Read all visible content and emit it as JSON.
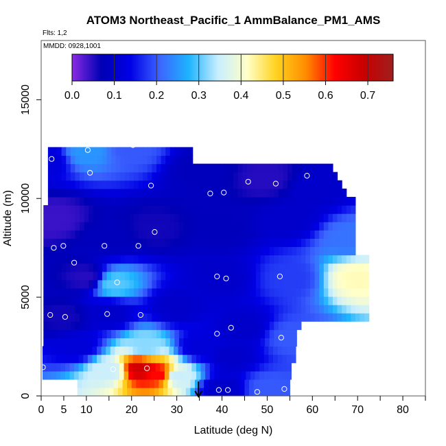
{
  "chart_data": {
    "type": "heatmap",
    "title": "ATOM3 Northeast_Pacific_1 AmmBalance_PM1_AMS",
    "subtitle_flights": "Flts: 1,2",
    "subtitle_dates": "MMDD: 0928,1001",
    "xlabel": "Latitude (deg N)",
    "ylabel": "Altitude (m)",
    "xlim": [
      0,
      85
    ],
    "ylim": [
      0,
      18000
    ],
    "x_ticks": [
      0,
      5,
      10,
      20,
      30,
      40,
      50,
      60,
      70,
      80
    ],
    "x_tick_labels": [
      "0",
      "5",
      "10",
      "20",
      "30",
      "40",
      "50",
      "60",
      "70",
      "80"
    ],
    "y_ticks": [
      0,
      5000,
      10000,
      15000
    ],
    "y_tick_labels": [
      "0",
      "5000",
      "10000",
      "15000"
    ],
    "colorbar": {
      "min": 0.0,
      "max": 0.76,
      "ticks": [
        0.0,
        0.1,
        0.2,
        0.3,
        0.4,
        0.5,
        0.6,
        0.7
      ],
      "tick_labels": [
        "0.0",
        "0.1",
        "0.2",
        "0.3",
        "0.4",
        "0.5",
        "0.6",
        "0.7"
      ],
      "colors": [
        "#8a2be2",
        "#0000b4",
        "#0000e6",
        "#3c64ff",
        "#1eb4ff",
        "#c8eeff",
        "#ffffc8",
        "#ffd21e",
        "#ff8c00",
        "#ff0000",
        "#c80000",
        "#a01e1e"
      ]
    },
    "latitude_range": [
      0.5,
      72
    ],
    "altitude_range": [
      0,
      12600
    ],
    "field_samples": [
      {
        "lat": 1,
        "alt": 12000,
        "value": 0.12
      },
      {
        "lat": 10,
        "alt": 12400,
        "value": 0.25
      },
      {
        "lat": 20,
        "alt": 12500,
        "value": 0.2
      },
      {
        "lat": 35,
        "alt": 11500,
        "value": 0.08
      },
      {
        "lat": 50,
        "alt": 11000,
        "value": 0.05
      },
      {
        "lat": 60,
        "alt": 10500,
        "value": 0.1
      },
      {
        "lat": 3,
        "alt": 9000,
        "value": 0.04
      },
      {
        "lat": 15,
        "alt": 8000,
        "value": 0.08
      },
      {
        "lat": 25,
        "alt": 8500,
        "value": 0.06
      },
      {
        "lat": 40,
        "alt": 8500,
        "value": 0.08
      },
      {
        "lat": 55,
        "alt": 9000,
        "value": 0.1
      },
      {
        "lat": 68,
        "alt": 8000,
        "value": 0.22
      },
      {
        "lat": 10,
        "alt": 6000,
        "value": 0.05
      },
      {
        "lat": 16,
        "alt": 5700,
        "value": 0.3
      },
      {
        "lat": 40,
        "alt": 6000,
        "value": 0.1
      },
      {
        "lat": 55,
        "alt": 6000,
        "value": 0.18
      },
      {
        "lat": 70,
        "alt": 6000,
        "value": 0.42
      },
      {
        "lat": 5,
        "alt": 4000,
        "value": 0.06
      },
      {
        "lat": 15,
        "alt": 4200,
        "value": 0.1
      },
      {
        "lat": 30,
        "alt": 4500,
        "value": 0.1
      },
      {
        "lat": 45,
        "alt": 3500,
        "value": 0.1
      },
      {
        "lat": 55,
        "alt": 3000,
        "value": 0.2
      },
      {
        "lat": 8,
        "alt": 2500,
        "value": 0.12
      },
      {
        "lat": 23,
        "alt": 2500,
        "value": 0.32
      },
      {
        "lat": 35,
        "alt": 2500,
        "value": 0.12
      },
      {
        "lat": 42,
        "alt": 2000,
        "value": 0.1
      },
      {
        "lat": 22,
        "alt": 1400,
        "value": 0.68
      },
      {
        "lat": 26,
        "alt": 1100,
        "value": 0.62
      },
      {
        "lat": 30,
        "alt": 1000,
        "value": 0.35
      },
      {
        "lat": 15,
        "alt": 1300,
        "value": 0.35
      },
      {
        "lat": 40,
        "alt": 400,
        "value": 0.1
      },
      {
        "lat": 50,
        "alt": 400,
        "value": 0.2
      }
    ],
    "sample_points": [
      {
        "lat": 2.3,
        "alt": 12000
      },
      {
        "lat": 10.3,
        "alt": 12450
      },
      {
        "lat": 20.3,
        "alt": 12700
      },
      {
        "lat": 10.8,
        "alt": 11300
      },
      {
        "lat": 24.3,
        "alt": 10650
      },
      {
        "lat": 37.4,
        "alt": 10250
      },
      {
        "lat": 40.4,
        "alt": 10300
      },
      {
        "lat": 45.8,
        "alt": 10850
      },
      {
        "lat": 51.9,
        "alt": 10750
      },
      {
        "lat": 58.8,
        "alt": 11150
      },
      {
        "lat": 68.9,
        "alt": 10950
      },
      {
        "lat": 25.1,
        "alt": 8300
      },
      {
        "lat": 2.8,
        "alt": 7500
      },
      {
        "lat": 4.9,
        "alt": 7600
      },
      {
        "lat": 14.0,
        "alt": 7600
      },
      {
        "lat": 21.5,
        "alt": 7600
      },
      {
        "lat": 7.3,
        "alt": 6750
      },
      {
        "lat": 16.8,
        "alt": 5750
      },
      {
        "lat": 38.9,
        "alt": 6050
      },
      {
        "lat": 40.9,
        "alt": 5950
      },
      {
        "lat": 52.8,
        "alt": 6050
      },
      {
        "lat": 2.0,
        "alt": 4100
      },
      {
        "lat": 5.3,
        "alt": 4000
      },
      {
        "lat": 14.6,
        "alt": 4150
      },
      {
        "lat": 22.0,
        "alt": 4100
      },
      {
        "lat": 42.0,
        "alt": 3450
      },
      {
        "lat": 38.9,
        "alt": 3150
      },
      {
        "lat": 53.1,
        "alt": 2950
      },
      {
        "lat": 0.4,
        "alt": 1450
      },
      {
        "lat": 15.9,
        "alt": 1350
      },
      {
        "lat": 23.4,
        "alt": 1400
      },
      {
        "lat": 39.3,
        "alt": 300
      },
      {
        "lat": 41.3,
        "alt": 300
      },
      {
        "lat": 47.8,
        "alt": 200
      },
      {
        "lat": 53.8,
        "alt": 350
      }
    ],
    "marker": {
      "lat": 34.8,
      "type": "arrow-down"
    }
  }
}
